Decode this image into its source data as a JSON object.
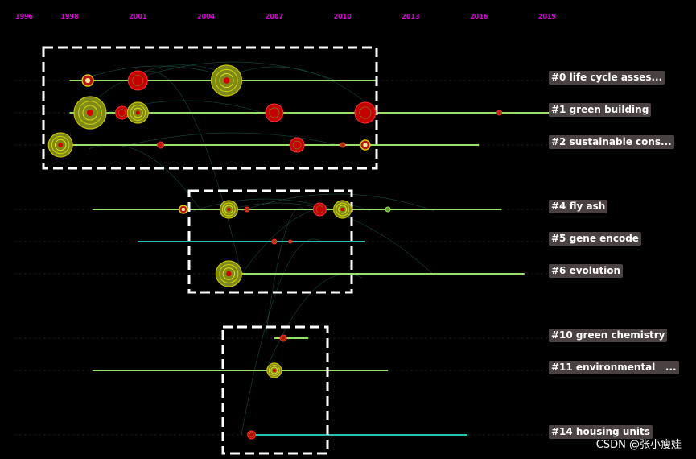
{
  "chart_data": {
    "type": "timeline",
    "years": [
      "1996",
      "1998",
      "2001",
      "2004",
      "2007",
      "2010",
      "2013",
      "2016",
      "2019"
    ],
    "x_range": [
      1996,
      2019
    ],
    "clusters": [
      {
        "label": "#0 life cycle asses...",
        "start": 1998,
        "end": 2011.5,
        "line_color": "#9adf6a",
        "nodes": [
          {
            "year": 1998.8,
            "size": 7,
            "type": "ring"
          },
          {
            "year": 2001,
            "size": 12,
            "type": "red"
          },
          {
            "year": 2004.9,
            "size": 19,
            "type": "yellow"
          }
        ]
      },
      {
        "label": "#1 green building",
        "start": 1998,
        "end": 2019.5,
        "line_color": "#9adf6a",
        "nodes": [
          {
            "year": 1998.9,
            "size": 20,
            "type": "yellow"
          },
          {
            "year": 2000.3,
            "size": 8,
            "type": "red"
          },
          {
            "year": 2001,
            "size": 13,
            "type": "yellow"
          },
          {
            "year": 2007,
            "size": 11,
            "type": "red"
          },
          {
            "year": 2011,
            "size": 13,
            "type": "red"
          },
          {
            "year": 2016.9,
            "size": 3,
            "type": "red"
          }
        ]
      },
      {
        "label": "#2 sustainable cons...",
        "start": 1997.5,
        "end": 2016,
        "line_color": "#9adf6a",
        "nodes": [
          {
            "year": 1997.6,
            "size": 15,
            "type": "yellow"
          },
          {
            "year": 2002,
            "size": 4,
            "type": "red"
          },
          {
            "year": 2008,
            "size": 9,
            "type": "red"
          },
          {
            "year": 2010,
            "size": 3,
            "type": "red"
          },
          {
            "year": 2011,
            "size": 6,
            "type": "ring"
          }
        ]
      },
      {
        "label": "#4 fly ash",
        "start": 1999,
        "end": 2017,
        "line_color": "#9adf6a",
        "nodes": [
          {
            "year": 2003,
            "size": 5,
            "type": "ring"
          },
          {
            "year": 2005,
            "size": 11,
            "type": "yellow"
          },
          {
            "year": 2005.8,
            "size": 3,
            "type": "red"
          },
          {
            "year": 2009,
            "size": 8,
            "type": "red"
          },
          {
            "year": 2010,
            "size": 11,
            "type": "yellow"
          },
          {
            "year": 2012,
            "size": 3,
            "type": "green"
          }
        ]
      },
      {
        "label": "#5 gene encode",
        "start": 2001,
        "end": 2011,
        "line_color": "#2bbdae",
        "nodes": [
          {
            "year": 2007,
            "size": 3,
            "type": "red"
          },
          {
            "year": 2007.7,
            "size": 2,
            "type": "red"
          }
        ]
      },
      {
        "label": "#6 evolution",
        "start": 2005,
        "end": 2018,
        "line_color": "#9adf6a",
        "nodes": [
          {
            "year": 2005,
            "size": 16,
            "type": "yellow"
          }
        ]
      },
      {
        "label": "#10 green chemistry",
        "start": 2007,
        "end": 2008.5,
        "line_color": "#9adf6a",
        "nodes": [
          {
            "year": 2007.4,
            "size": 4,
            "type": "red"
          }
        ]
      },
      {
        "label": "#11 environmental   ...",
        "start": 1999,
        "end": 2012,
        "line_color": "#9adf6a",
        "nodes": [
          {
            "year": 2007,
            "size": 9,
            "type": "yellow"
          }
        ]
      },
      {
        "label": "#14 housing units",
        "start": 2006,
        "end": 2015.5,
        "line_color": "#2bbdae",
        "nodes": [
          {
            "year": 2006,
            "size": 5,
            "type": "red"
          }
        ]
      }
    ]
  },
  "watermark": "CSDN @张小瘦娃"
}
